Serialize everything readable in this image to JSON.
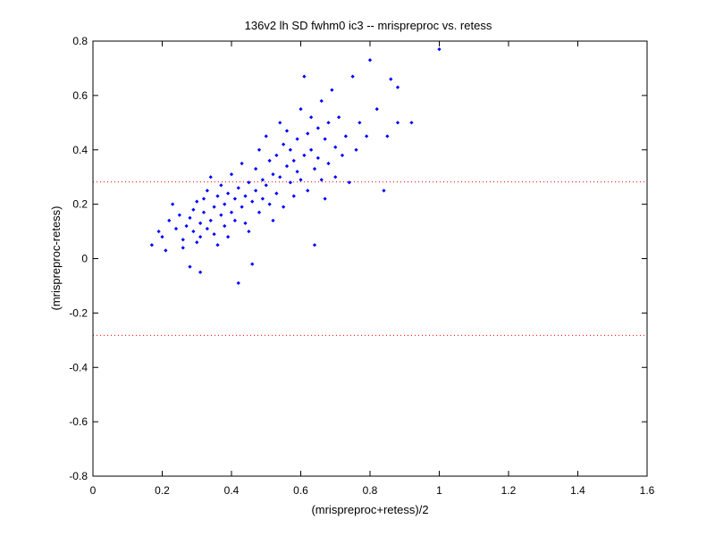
{
  "chart_data": {
    "type": "scatter",
    "title": "136v2 lh SD fwhm0 ic3 -- mrispreproc vs. retess",
    "xlabel": "(mrispreproc+retess)/2",
    "ylabel": "(mrispreproc-retess)",
    "xlim": [
      0,
      1.6
    ],
    "ylim": [
      -0.8,
      0.8
    ],
    "xticks": [
      0,
      0.2,
      0.4,
      0.6,
      0.8,
      1,
      1.2,
      1.4,
      1.6
    ],
    "xtick_labels": [
      "0",
      "0.2",
      "0.4",
      "0.6",
      "0.8",
      "1",
      "1.2",
      "1.4",
      "1.6"
    ],
    "yticks": [
      -0.8,
      -0.6,
      -0.4,
      -0.2,
      0,
      0.2,
      0.4,
      0.6,
      0.8
    ],
    "ytick_labels": [
      "-0.8",
      "-0.6",
      "-0.4",
      "-0.2",
      "0",
      "0.2",
      "0.4",
      "0.6",
      "0.8"
    ],
    "grid": false,
    "reference_lines": [
      {
        "y": 0.282,
        "color": "#ff0000",
        "style": "dotted"
      },
      {
        "y": -0.282,
        "color": "#ff0000",
        "style": "dotted"
      }
    ],
    "series": [
      {
        "color": "#0000ff",
        "marker": "dot",
        "points": [
          [
            0.17,
            0.05
          ],
          [
            0.19,
            0.1
          ],
          [
            0.2,
            0.08
          ],
          [
            0.21,
            0.03
          ],
          [
            0.22,
            0.14
          ],
          [
            0.23,
            0.2
          ],
          [
            0.24,
            0.11
          ],
          [
            0.25,
            0.16
          ],
          [
            0.26,
            0.07
          ],
          [
            0.26,
            0.04
          ],
          [
            0.27,
            0.12
          ],
          [
            0.28,
            0.15
          ],
          [
            0.28,
            -0.03
          ],
          [
            0.29,
            0.1
          ],
          [
            0.29,
            0.18
          ],
          [
            0.3,
            0.21
          ],
          [
            0.3,
            0.06
          ],
          [
            0.31,
            0.13
          ],
          [
            0.31,
            0.08
          ],
          [
            0.31,
            -0.05
          ],
          [
            0.32,
            0.17
          ],
          [
            0.32,
            0.22
          ],
          [
            0.33,
            0.11
          ],
          [
            0.33,
            0.25
          ],
          [
            0.34,
            0.14
          ],
          [
            0.34,
            0.3
          ],
          [
            0.35,
            0.09
          ],
          [
            0.35,
            0.19
          ],
          [
            0.36,
            0.23
          ],
          [
            0.36,
            0.05
          ],
          [
            0.37,
            0.16
          ],
          [
            0.37,
            0.27
          ],
          [
            0.38,
            0.12
          ],
          [
            0.38,
            0.2
          ],
          [
            0.39,
            0.24
          ],
          [
            0.39,
            0.08
          ],
          [
            0.4,
            0.17
          ],
          [
            0.4,
            0.31
          ],
          [
            0.41,
            0.14
          ],
          [
            0.41,
            0.22
          ],
          [
            0.42,
            0.26
          ],
          [
            0.42,
            -0.09
          ],
          [
            0.43,
            0.19
          ],
          [
            0.43,
            0.35
          ],
          [
            0.44,
            0.13
          ],
          [
            0.44,
            0.23
          ],
          [
            0.45,
            0.28
          ],
          [
            0.45,
            0.1
          ],
          [
            0.46,
            0.21
          ],
          [
            0.46,
            -0.02
          ],
          [
            0.47,
            0.25
          ],
          [
            0.47,
            0.33
          ],
          [
            0.48,
            0.17
          ],
          [
            0.48,
            0.4
          ],
          [
            0.49,
            0.22
          ],
          [
            0.49,
            0.29
          ],
          [
            0.5,
            0.27
          ],
          [
            0.5,
            0.45
          ],
          [
            0.51,
            0.2
          ],
          [
            0.51,
            0.36
          ],
          [
            0.52,
            0.31
          ],
          [
            0.52,
            0.14
          ],
          [
            0.53,
            0.38
          ],
          [
            0.53,
            0.24
          ],
          [
            0.54,
            0.5
          ],
          [
            0.54,
            0.3
          ],
          [
            0.55,
            0.42
          ],
          [
            0.55,
            0.19
          ],
          [
            0.56,
            0.34
          ],
          [
            0.56,
            0.47
          ],
          [
            0.57,
            0.28
          ],
          [
            0.57,
            0.4
          ],
          [
            0.58,
            0.36
          ],
          [
            0.58,
            0.23
          ],
          [
            0.59,
            0.44
          ],
          [
            0.59,
            0.32
          ],
          [
            0.6,
            0.55
          ],
          [
            0.6,
            0.29
          ],
          [
            0.61,
            0.38
          ],
          [
            0.61,
            0.67
          ],
          [
            0.62,
            0.46
          ],
          [
            0.62,
            0.25
          ],
          [
            0.63,
            0.4
          ],
          [
            0.63,
            0.52
          ],
          [
            0.64,
            0.33
          ],
          [
            0.64,
            0.05
          ],
          [
            0.65,
            0.48
          ],
          [
            0.65,
            0.37
          ],
          [
            0.66,
            0.29
          ],
          [
            0.66,
            0.58
          ],
          [
            0.67,
            0.44
          ],
          [
            0.67,
            0.22
          ],
          [
            0.68,
            0.5
          ],
          [
            0.68,
            0.35
          ],
          [
            0.69,
            0.62
          ],
          [
            0.7,
            0.41
          ],
          [
            0.7,
            0.3
          ],
          [
            0.71,
            0.52
          ],
          [
            0.72,
            0.38
          ],
          [
            0.73,
            0.45
          ],
          [
            0.74,
            0.28
          ],
          [
            0.75,
            0.67
          ],
          [
            0.76,
            0.4
          ],
          [
            0.77,
            0.5
          ],
          [
            0.79,
            0.45
          ],
          [
            0.8,
            0.73
          ],
          [
            0.82,
            0.55
          ],
          [
            0.84,
            0.25
          ],
          [
            0.85,
            0.45
          ],
          [
            0.86,
            0.66
          ],
          [
            0.88,
            0.63
          ],
          [
            0.88,
            0.5
          ],
          [
            0.92,
            0.5
          ],
          [
            1.0,
            0.77
          ]
        ]
      }
    ]
  }
}
